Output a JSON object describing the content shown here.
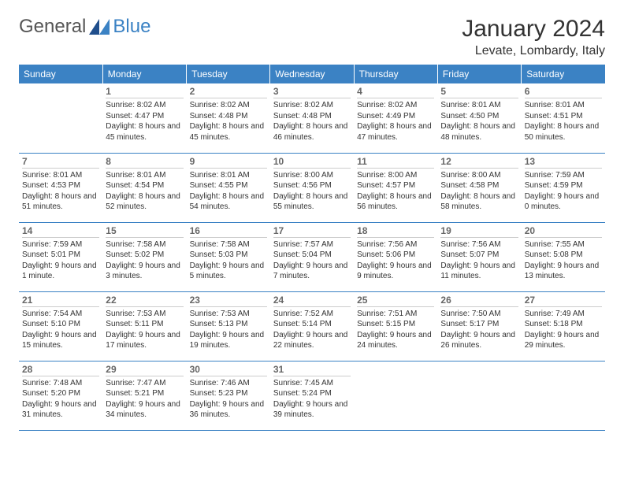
{
  "logo": {
    "general": "General",
    "blue": "Blue"
  },
  "header": {
    "month": "January 2024",
    "location": "Levate, Lombardy, Italy"
  },
  "dayHeaders": [
    "Sunday",
    "Monday",
    "Tuesday",
    "Wednesday",
    "Thursday",
    "Friday",
    "Saturday"
  ],
  "colors": {
    "headerBg": "#3b82c4",
    "headerText": "#ffffff",
    "border": "#3b82c4"
  },
  "weeks": [
    [
      {
        "num": "",
        "sunrise": "",
        "sunset": "",
        "daylight": ""
      },
      {
        "num": "1",
        "sunrise": "Sunrise: 8:02 AM",
        "sunset": "Sunset: 4:47 PM",
        "daylight": "Daylight: 8 hours and 45 minutes."
      },
      {
        "num": "2",
        "sunrise": "Sunrise: 8:02 AM",
        "sunset": "Sunset: 4:48 PM",
        "daylight": "Daylight: 8 hours and 45 minutes."
      },
      {
        "num": "3",
        "sunrise": "Sunrise: 8:02 AM",
        "sunset": "Sunset: 4:48 PM",
        "daylight": "Daylight: 8 hours and 46 minutes."
      },
      {
        "num": "4",
        "sunrise": "Sunrise: 8:02 AM",
        "sunset": "Sunset: 4:49 PM",
        "daylight": "Daylight: 8 hours and 47 minutes."
      },
      {
        "num": "5",
        "sunrise": "Sunrise: 8:01 AM",
        "sunset": "Sunset: 4:50 PM",
        "daylight": "Daylight: 8 hours and 48 minutes."
      },
      {
        "num": "6",
        "sunrise": "Sunrise: 8:01 AM",
        "sunset": "Sunset: 4:51 PM",
        "daylight": "Daylight: 8 hours and 50 minutes."
      }
    ],
    [
      {
        "num": "7",
        "sunrise": "Sunrise: 8:01 AM",
        "sunset": "Sunset: 4:53 PM",
        "daylight": "Daylight: 8 hours and 51 minutes."
      },
      {
        "num": "8",
        "sunrise": "Sunrise: 8:01 AM",
        "sunset": "Sunset: 4:54 PM",
        "daylight": "Daylight: 8 hours and 52 minutes."
      },
      {
        "num": "9",
        "sunrise": "Sunrise: 8:01 AM",
        "sunset": "Sunset: 4:55 PM",
        "daylight": "Daylight: 8 hours and 54 minutes."
      },
      {
        "num": "10",
        "sunrise": "Sunrise: 8:00 AM",
        "sunset": "Sunset: 4:56 PM",
        "daylight": "Daylight: 8 hours and 55 minutes."
      },
      {
        "num": "11",
        "sunrise": "Sunrise: 8:00 AM",
        "sunset": "Sunset: 4:57 PM",
        "daylight": "Daylight: 8 hours and 56 minutes."
      },
      {
        "num": "12",
        "sunrise": "Sunrise: 8:00 AM",
        "sunset": "Sunset: 4:58 PM",
        "daylight": "Daylight: 8 hours and 58 minutes."
      },
      {
        "num": "13",
        "sunrise": "Sunrise: 7:59 AM",
        "sunset": "Sunset: 4:59 PM",
        "daylight": "Daylight: 9 hours and 0 minutes."
      }
    ],
    [
      {
        "num": "14",
        "sunrise": "Sunrise: 7:59 AM",
        "sunset": "Sunset: 5:01 PM",
        "daylight": "Daylight: 9 hours and 1 minute."
      },
      {
        "num": "15",
        "sunrise": "Sunrise: 7:58 AM",
        "sunset": "Sunset: 5:02 PM",
        "daylight": "Daylight: 9 hours and 3 minutes."
      },
      {
        "num": "16",
        "sunrise": "Sunrise: 7:58 AM",
        "sunset": "Sunset: 5:03 PM",
        "daylight": "Daylight: 9 hours and 5 minutes."
      },
      {
        "num": "17",
        "sunrise": "Sunrise: 7:57 AM",
        "sunset": "Sunset: 5:04 PM",
        "daylight": "Daylight: 9 hours and 7 minutes."
      },
      {
        "num": "18",
        "sunrise": "Sunrise: 7:56 AM",
        "sunset": "Sunset: 5:06 PM",
        "daylight": "Daylight: 9 hours and 9 minutes."
      },
      {
        "num": "19",
        "sunrise": "Sunrise: 7:56 AM",
        "sunset": "Sunset: 5:07 PM",
        "daylight": "Daylight: 9 hours and 11 minutes."
      },
      {
        "num": "20",
        "sunrise": "Sunrise: 7:55 AM",
        "sunset": "Sunset: 5:08 PM",
        "daylight": "Daylight: 9 hours and 13 minutes."
      }
    ],
    [
      {
        "num": "21",
        "sunrise": "Sunrise: 7:54 AM",
        "sunset": "Sunset: 5:10 PM",
        "daylight": "Daylight: 9 hours and 15 minutes."
      },
      {
        "num": "22",
        "sunrise": "Sunrise: 7:53 AM",
        "sunset": "Sunset: 5:11 PM",
        "daylight": "Daylight: 9 hours and 17 minutes."
      },
      {
        "num": "23",
        "sunrise": "Sunrise: 7:53 AM",
        "sunset": "Sunset: 5:13 PM",
        "daylight": "Daylight: 9 hours and 19 minutes."
      },
      {
        "num": "24",
        "sunrise": "Sunrise: 7:52 AM",
        "sunset": "Sunset: 5:14 PM",
        "daylight": "Daylight: 9 hours and 22 minutes."
      },
      {
        "num": "25",
        "sunrise": "Sunrise: 7:51 AM",
        "sunset": "Sunset: 5:15 PM",
        "daylight": "Daylight: 9 hours and 24 minutes."
      },
      {
        "num": "26",
        "sunrise": "Sunrise: 7:50 AM",
        "sunset": "Sunset: 5:17 PM",
        "daylight": "Daylight: 9 hours and 26 minutes."
      },
      {
        "num": "27",
        "sunrise": "Sunrise: 7:49 AM",
        "sunset": "Sunset: 5:18 PM",
        "daylight": "Daylight: 9 hours and 29 minutes."
      }
    ],
    [
      {
        "num": "28",
        "sunrise": "Sunrise: 7:48 AM",
        "sunset": "Sunset: 5:20 PM",
        "daylight": "Daylight: 9 hours and 31 minutes."
      },
      {
        "num": "29",
        "sunrise": "Sunrise: 7:47 AM",
        "sunset": "Sunset: 5:21 PM",
        "daylight": "Daylight: 9 hours and 34 minutes."
      },
      {
        "num": "30",
        "sunrise": "Sunrise: 7:46 AM",
        "sunset": "Sunset: 5:23 PM",
        "daylight": "Daylight: 9 hours and 36 minutes."
      },
      {
        "num": "31",
        "sunrise": "Sunrise: 7:45 AM",
        "sunset": "Sunset: 5:24 PM",
        "daylight": "Daylight: 9 hours and 39 minutes."
      },
      {
        "num": "",
        "sunrise": "",
        "sunset": "",
        "daylight": ""
      },
      {
        "num": "",
        "sunrise": "",
        "sunset": "",
        "daylight": ""
      },
      {
        "num": "",
        "sunrise": "",
        "sunset": "",
        "daylight": ""
      }
    ]
  ]
}
